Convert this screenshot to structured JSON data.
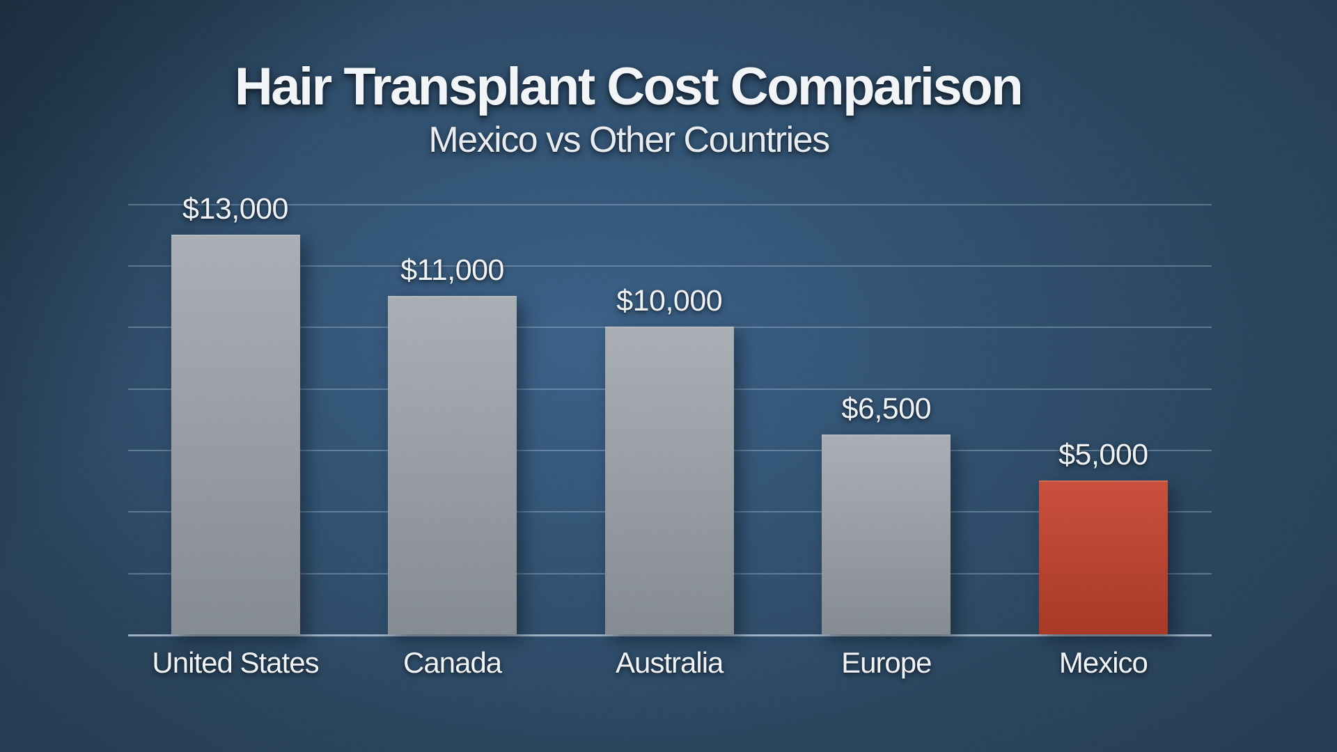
{
  "header": {
    "title": "Hair Transplant Cost Comparison",
    "subtitle": "Mexico vs Other Countries"
  },
  "chart_data": {
    "type": "bar",
    "title": "Hair Transplant Cost Comparison",
    "subtitle": "Mexico vs Other Countries",
    "categories": [
      "United States",
      "Canada",
      "Australia",
      "Europe",
      "Mexico"
    ],
    "values": [
      13000,
      11000,
      10000,
      6500,
      5000
    ],
    "value_labels": [
      "$13,000",
      "$11,000",
      "$10,000",
      "$6,500",
      "$5,000"
    ],
    "xlabel": "",
    "ylabel": "",
    "ylim": [
      0,
      14000
    ],
    "grid_step": 2000,
    "grid": "horizontal",
    "legend": "none",
    "highlight_index": 4,
    "highlight_category": "Mexico",
    "colors": {
      "background_center": "#2f5278",
      "background_edge": "#16222f",
      "bar_default_top": "#a4aab1",
      "bar_default_bottom": "#8e959c",
      "bar_highlight_top": "#c7432e",
      "bar_highlight_bottom": "#b53a25",
      "gridline": "rgba(186,210,232,0.35)",
      "axis_line": "rgba(196,214,230,0.75)",
      "title_text": "#f4f7fa",
      "subtitle_text": "#e9eef3",
      "label_text": "#f2f5f8"
    }
  }
}
